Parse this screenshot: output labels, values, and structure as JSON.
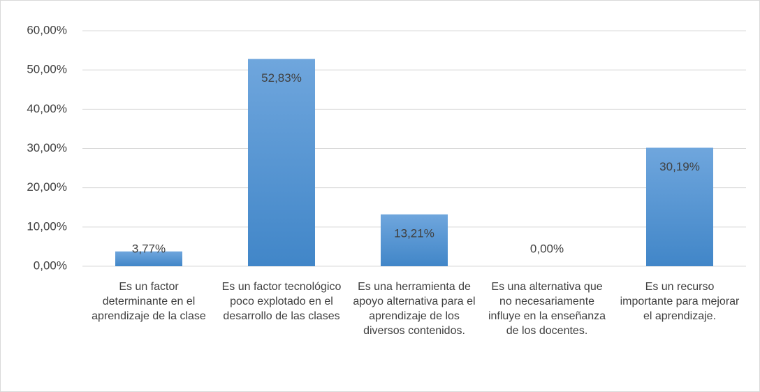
{
  "chart_data": {
    "type": "bar",
    "categories": [
      "Es un factor determinante en el aprendizaje de la clase",
      "Es un factor tecnológico poco explotado en el desarrollo de las clases",
      "Es una herramienta de apoyo alternativa para el aprendizaje de los diversos contenidos.",
      "Es una alternativa que no necesariamente influye en la enseñanza de los docentes.",
      "Es un recurso importante para mejorar el aprendizaje."
    ],
    "values": [
      3.77,
      52.83,
      13.21,
      0,
      30.19
    ],
    "value_labels": [
      "3,77%",
      "52,83%",
      "13,21%",
      "0,00%",
      "30,19%"
    ],
    "color": "#5b9bd5",
    "ylim": [
      0,
      60
    ],
    "yticks": [
      {
        "value": 0,
        "label": "0,00%"
      },
      {
        "value": 10,
        "label": "10,00%"
      },
      {
        "value": 20,
        "label": "20,00%"
      },
      {
        "value": 30,
        "label": "30,00%"
      },
      {
        "value": 40,
        "label": "40,00%"
      },
      {
        "value": 50,
        "label": "50,00%"
      },
      {
        "value": 60,
        "label": "60,00%"
      }
    ],
    "grid": true
  }
}
